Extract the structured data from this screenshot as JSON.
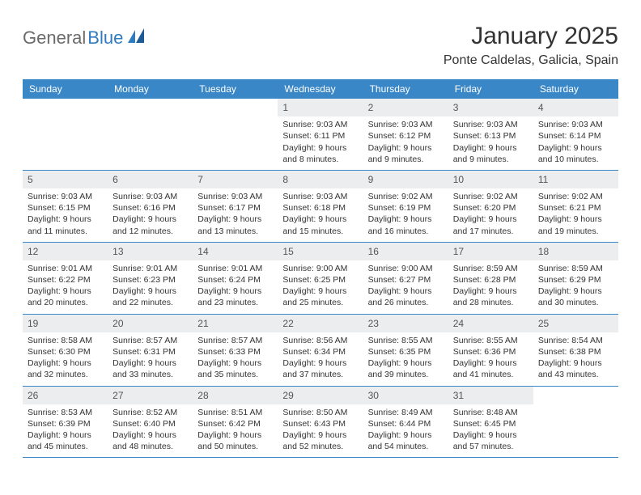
{
  "brand": {
    "general": "General",
    "blue": "Blue"
  },
  "title": "January 2025",
  "location": "Ponte Caldelas, Galicia, Spain",
  "colors": {
    "header_bg": "#3a87c7",
    "header_text": "#ffffff",
    "daybar_bg": "#ecedee",
    "row_border": "#3a87c7",
    "body_text": "#333333",
    "logo_gray": "#6a6a6a",
    "logo_blue": "#2f7bbf"
  },
  "weekdays": [
    "Sunday",
    "Monday",
    "Tuesday",
    "Wednesday",
    "Thursday",
    "Friday",
    "Saturday"
  ],
  "weeks": [
    [
      null,
      null,
      null,
      {
        "n": "1",
        "sunrise": "9:03 AM",
        "sunset": "6:11 PM",
        "daylight_h": 9,
        "daylight_m": 8
      },
      {
        "n": "2",
        "sunrise": "9:03 AM",
        "sunset": "6:12 PM",
        "daylight_h": 9,
        "daylight_m": 9
      },
      {
        "n": "3",
        "sunrise": "9:03 AM",
        "sunset": "6:13 PM",
        "daylight_h": 9,
        "daylight_m": 9
      },
      {
        "n": "4",
        "sunrise": "9:03 AM",
        "sunset": "6:14 PM",
        "daylight_h": 9,
        "daylight_m": 10
      }
    ],
    [
      {
        "n": "5",
        "sunrise": "9:03 AM",
        "sunset": "6:15 PM",
        "daylight_h": 9,
        "daylight_m": 11
      },
      {
        "n": "6",
        "sunrise": "9:03 AM",
        "sunset": "6:16 PM",
        "daylight_h": 9,
        "daylight_m": 12
      },
      {
        "n": "7",
        "sunrise": "9:03 AM",
        "sunset": "6:17 PM",
        "daylight_h": 9,
        "daylight_m": 13
      },
      {
        "n": "8",
        "sunrise": "9:03 AM",
        "sunset": "6:18 PM",
        "daylight_h": 9,
        "daylight_m": 15
      },
      {
        "n": "9",
        "sunrise": "9:02 AM",
        "sunset": "6:19 PM",
        "daylight_h": 9,
        "daylight_m": 16
      },
      {
        "n": "10",
        "sunrise": "9:02 AM",
        "sunset": "6:20 PM",
        "daylight_h": 9,
        "daylight_m": 17
      },
      {
        "n": "11",
        "sunrise": "9:02 AM",
        "sunset": "6:21 PM",
        "daylight_h": 9,
        "daylight_m": 19
      }
    ],
    [
      {
        "n": "12",
        "sunrise": "9:01 AM",
        "sunset": "6:22 PM",
        "daylight_h": 9,
        "daylight_m": 20
      },
      {
        "n": "13",
        "sunrise": "9:01 AM",
        "sunset": "6:23 PM",
        "daylight_h": 9,
        "daylight_m": 22
      },
      {
        "n": "14",
        "sunrise": "9:01 AM",
        "sunset": "6:24 PM",
        "daylight_h": 9,
        "daylight_m": 23
      },
      {
        "n": "15",
        "sunrise": "9:00 AM",
        "sunset": "6:25 PM",
        "daylight_h": 9,
        "daylight_m": 25
      },
      {
        "n": "16",
        "sunrise": "9:00 AM",
        "sunset": "6:27 PM",
        "daylight_h": 9,
        "daylight_m": 26
      },
      {
        "n": "17",
        "sunrise": "8:59 AM",
        "sunset": "6:28 PM",
        "daylight_h": 9,
        "daylight_m": 28
      },
      {
        "n": "18",
        "sunrise": "8:59 AM",
        "sunset": "6:29 PM",
        "daylight_h": 9,
        "daylight_m": 30
      }
    ],
    [
      {
        "n": "19",
        "sunrise": "8:58 AM",
        "sunset": "6:30 PM",
        "daylight_h": 9,
        "daylight_m": 32
      },
      {
        "n": "20",
        "sunrise": "8:57 AM",
        "sunset": "6:31 PM",
        "daylight_h": 9,
        "daylight_m": 33
      },
      {
        "n": "21",
        "sunrise": "8:57 AM",
        "sunset": "6:33 PM",
        "daylight_h": 9,
        "daylight_m": 35
      },
      {
        "n": "22",
        "sunrise": "8:56 AM",
        "sunset": "6:34 PM",
        "daylight_h": 9,
        "daylight_m": 37
      },
      {
        "n": "23",
        "sunrise": "8:55 AM",
        "sunset": "6:35 PM",
        "daylight_h": 9,
        "daylight_m": 39
      },
      {
        "n": "24",
        "sunrise": "8:55 AM",
        "sunset": "6:36 PM",
        "daylight_h": 9,
        "daylight_m": 41
      },
      {
        "n": "25",
        "sunrise": "8:54 AM",
        "sunset": "6:38 PM",
        "daylight_h": 9,
        "daylight_m": 43
      }
    ],
    [
      {
        "n": "26",
        "sunrise": "8:53 AM",
        "sunset": "6:39 PM",
        "daylight_h": 9,
        "daylight_m": 45
      },
      {
        "n": "27",
        "sunrise": "8:52 AM",
        "sunset": "6:40 PM",
        "daylight_h": 9,
        "daylight_m": 48
      },
      {
        "n": "28",
        "sunrise": "8:51 AM",
        "sunset": "6:42 PM",
        "daylight_h": 9,
        "daylight_m": 50
      },
      {
        "n": "29",
        "sunrise": "8:50 AM",
        "sunset": "6:43 PM",
        "daylight_h": 9,
        "daylight_m": 52
      },
      {
        "n": "30",
        "sunrise": "8:49 AM",
        "sunset": "6:44 PM",
        "daylight_h": 9,
        "daylight_m": 54
      },
      {
        "n": "31",
        "sunrise": "8:48 AM",
        "sunset": "6:45 PM",
        "daylight_h": 9,
        "daylight_m": 57
      },
      null
    ]
  ],
  "labels": {
    "sunrise_prefix": "Sunrise: ",
    "sunset_prefix": "Sunset: ",
    "daylight_prefix": "Daylight: ",
    "hours_word": " hours",
    "and_word": "and ",
    "minutes_word": " minutes."
  }
}
